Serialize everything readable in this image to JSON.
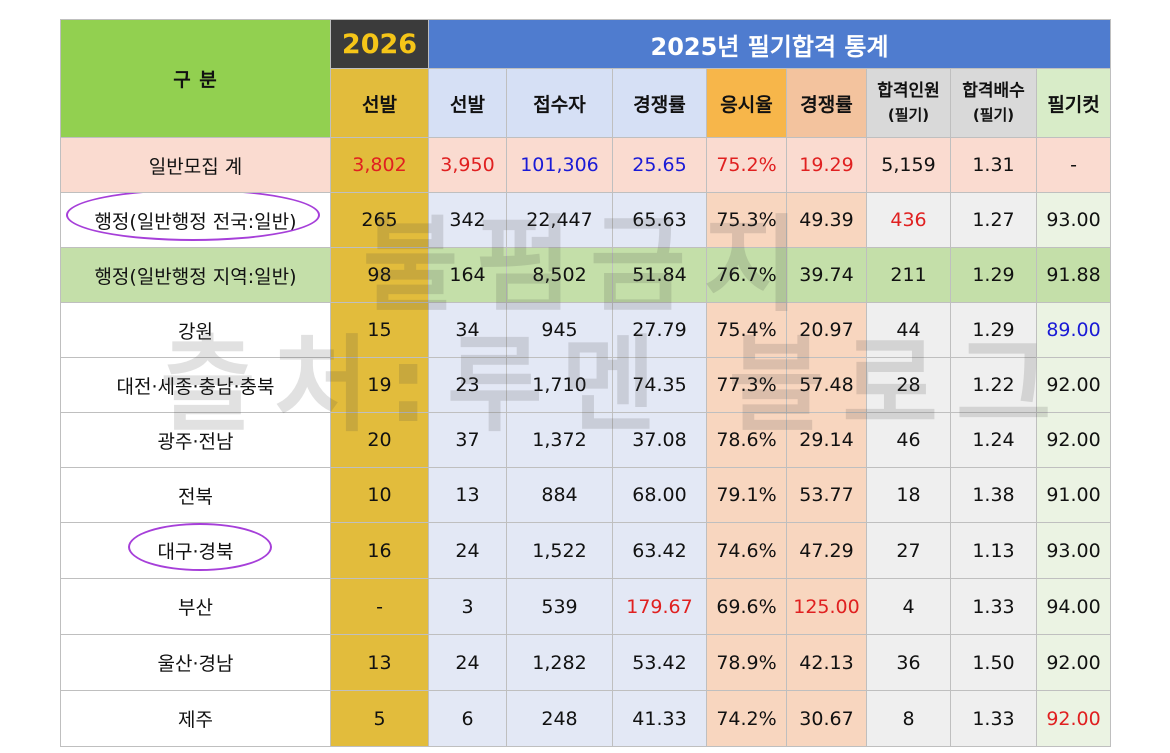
{
  "header": {
    "gubun": "구   분",
    "year2026": "2026",
    "year2025": "2025년 필기합격 통계",
    "cols": [
      {
        "main": "선발"
      },
      {
        "main": "선발"
      },
      {
        "main": "접수자"
      },
      {
        "main": "경쟁률"
      },
      {
        "main": "응시율"
      },
      {
        "main": "경쟁률"
      },
      {
        "main": "합격인원",
        "sub": "(필기)"
      },
      {
        "main": "합격배수",
        "sub": "(필기)"
      },
      {
        "main": "필기컷"
      }
    ]
  },
  "rows": [
    {
      "label": "일반모집 계",
      "v": [
        "3,802",
        "3,950",
        "101,306",
        "25.65",
        "75.2%",
        "19.29",
        "5,159",
        "1.31",
        "-"
      ]
    },
    {
      "label": "행정(일반행정 전국:일반)",
      "v": [
        "265",
        "342",
        "22,447",
        "65.63",
        "75.3%",
        "49.39",
        "436",
        "1.27",
        "93.00"
      ]
    },
    {
      "label": "행정(일반행정 지역:일반)",
      "v": [
        "98",
        "164",
        "8,502",
        "51.84",
        "76.7%",
        "39.74",
        "211",
        "1.29",
        "91.88"
      ]
    },
    {
      "label": "강원",
      "v": [
        "15",
        "34",
        "945",
        "27.79",
        "75.4%",
        "20.97",
        "44",
        "1.29",
        "89.00"
      ]
    },
    {
      "label": "대전·세종·충남·충북",
      "v": [
        "19",
        "23",
        "1,710",
        "74.35",
        "77.3%",
        "57.48",
        "28",
        "1.22",
        "92.00"
      ]
    },
    {
      "label": "광주·전남",
      "v": [
        "20",
        "37",
        "1,372",
        "37.08",
        "78.6%",
        "29.14",
        "46",
        "1.24",
        "92.00"
      ]
    },
    {
      "label": "전북",
      "v": [
        "10",
        "13",
        "884",
        "68.00",
        "79.1%",
        "53.77",
        "18",
        "1.38",
        "91.00"
      ]
    },
    {
      "label": "대구·경북",
      "v": [
        "16",
        "24",
        "1,522",
        "63.42",
        "74.6%",
        "47.29",
        "27",
        "1.13",
        "93.00"
      ]
    },
    {
      "label": "부산",
      "v": [
        "-",
        "3",
        "539",
        "179.67",
        "69.6%",
        "125.00",
        "4",
        "1.33",
        "94.00"
      ]
    },
    {
      "label": "울산·경남",
      "v": [
        "13",
        "24",
        "1,282",
        "53.42",
        "78.9%",
        "42.13",
        "36",
        "1.50",
        "92.00"
      ]
    },
    {
      "label": "제주",
      "v": [
        "5",
        "6",
        "248",
        "41.33",
        "74.2%",
        "30.67",
        "8",
        "1.33",
        "92.00"
      ]
    }
  ],
  "watermark": [
    "불펌금지",
    "출처:루멘 블로그"
  ],
  "colors": {
    "accent_red": "#e02020",
    "accent_blue": "#1a1ad6",
    "circle_purple": "#a63fd9"
  }
}
